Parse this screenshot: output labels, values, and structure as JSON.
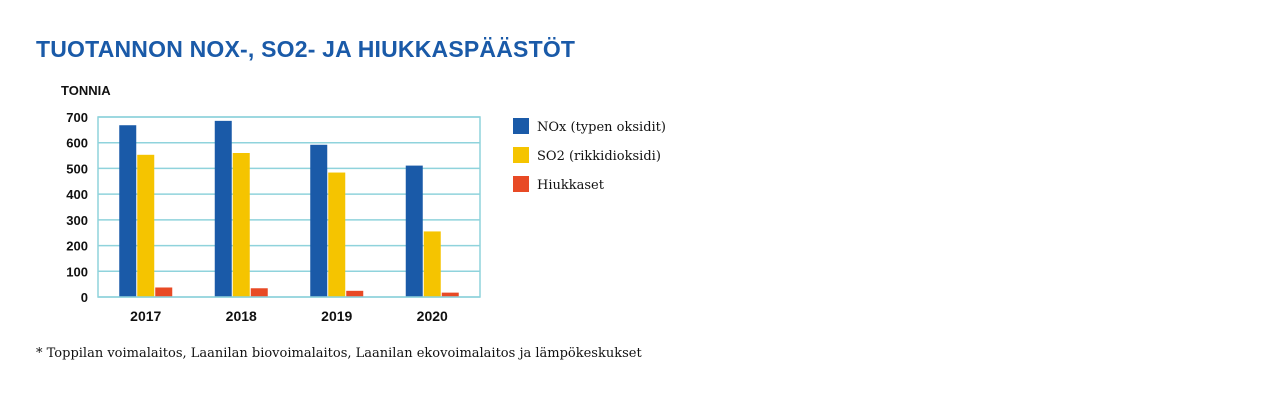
{
  "title": "TUOTANNON NOX-, SO2- JA HIUKKASPÄÄSTÖT",
  "footnote": "* Toppilan voimalaitos, Laanilan biovoimalaitos, Laanilan ekovoimalaitos ja lämpökeskukset",
  "colors": {
    "nox": "#1a5aa8",
    "so2": "#f5c400",
    "hiukkaset": "#e84a25",
    "grid": "#8fd3dc",
    "title": "#1a5aa8"
  },
  "chart_data": {
    "type": "bar",
    "ylabel": "TONNIA",
    "categories": [
      "2017",
      "2018",
      "2019",
      "2020"
    ],
    "ylim": [
      0,
      700
    ],
    "yticks": [
      0,
      100,
      200,
      300,
      400,
      500,
      600,
      700
    ],
    "grid": true,
    "legend_position": "right",
    "series": [
      {
        "name": "NOx (typen oksidit)",
        "color": "#1a5aa8",
        "values": [
          668,
          685,
          592,
          511
        ]
      },
      {
        "name": "SO2  (rikkidioksidi)",
        "color": "#f5c400",
        "values": [
          553,
          560,
          484,
          255
        ]
      },
      {
        "name": "Hiukkaset",
        "color": "#e84a25",
        "values": [
          37,
          34,
          24,
          17
        ]
      }
    ]
  }
}
